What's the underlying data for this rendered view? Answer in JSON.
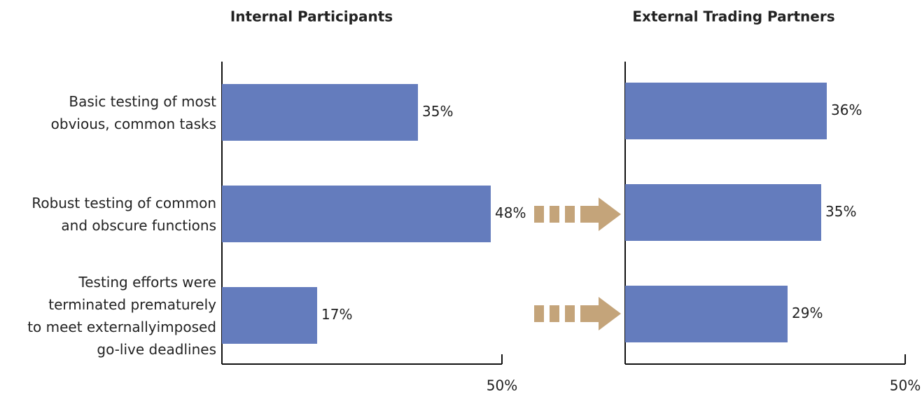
{
  "chart_data": [
    {
      "type": "bar",
      "orientation": "horizontal",
      "title": "Internal Participants",
      "categories": [
        "Basic testing of most\nobvious, common tasks",
        "Robust testing of common\nand obscure functions",
        "Testing efforts were\nterminated prematurely\nto meet externallyimposed\ngo-live deadlines"
      ],
      "values": [
        35,
        48,
        17
      ],
      "value_labels": [
        "35%",
        "48%",
        "17%"
      ],
      "color": "#647cbd",
      "xlim": [
        0,
        50
      ],
      "xticks": [
        {
          "value": 50,
          "label": "50%"
        }
      ]
    },
    {
      "type": "bar",
      "orientation": "horizontal",
      "title": "External Trading Partners",
      "categories": [
        null,
        null,
        null
      ],
      "values": [
        36,
        35,
        29
      ],
      "value_labels": [
        "36%",
        "35%",
        "29%"
      ],
      "color": "#647cbd",
      "xlim": [
        0,
        50
      ],
      "xticks": [
        {
          "value": 50,
          "label": "50%"
        }
      ]
    }
  ]
}
